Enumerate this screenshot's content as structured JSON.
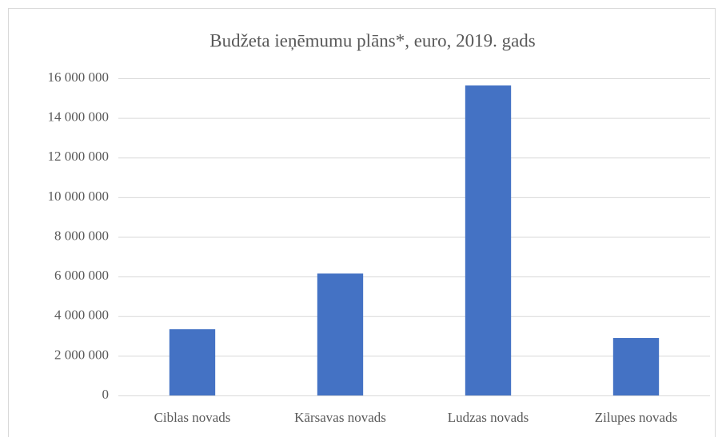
{
  "chart_data": {
    "type": "bar",
    "title": "Budžeta ieņēmumu plāns*, euro, 2019. gads",
    "categories": [
      "Ciblas novads",
      "Kārsavas novads",
      "Ludzas novads",
      "Zilupes novads"
    ],
    "values": [
      3340000,
      6150000,
      15640000,
      2900000
    ],
    "color": "#4472c4",
    "ylim": [
      0,
      16000000
    ],
    "yticks": [
      0,
      {
        "value": 2000000,
        "label": "2 000 000"
      },
      {
        "value": 4000000,
        "label": "4 000 000"
      },
      {
        "value": 6000000,
        "label": "6 000 000"
      },
      {
        "value": 8000000,
        "label": "8 000 000"
      },
      {
        "value": 10000000,
        "label": "10 000 000"
      },
      {
        "value": 12000000,
        "label": "12 000 000"
      },
      {
        "value": 14000000,
        "label": "14 000 000"
      },
      {
        "value": 16000000,
        "label": "16 000 000"
      }
    ],
    "grid": true
  }
}
